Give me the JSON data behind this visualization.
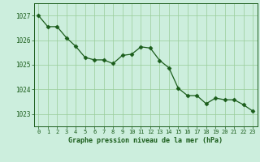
{
  "x": [
    0,
    1,
    2,
    3,
    4,
    5,
    6,
    7,
    8,
    9,
    10,
    11,
    12,
    13,
    14,
    15,
    16,
    17,
    18,
    19,
    20,
    21,
    22,
    23
  ],
  "y": [
    1027.0,
    1026.55,
    1026.55,
    1026.1,
    1025.75,
    1025.3,
    1025.2,
    1025.2,
    1025.05,
    1025.38,
    1025.43,
    1025.73,
    1025.68,
    1025.18,
    1024.88,
    1024.05,
    1023.75,
    1023.75,
    1023.42,
    1023.65,
    1023.58,
    1023.58,
    1023.38,
    1023.12
  ],
  "line_color": "#1a5c1a",
  "marker_color": "#1a5c1a",
  "bg_color": "#cceedd",
  "grid_color": "#99cc99",
  "title": "Graphe pression niveau de la mer (hPa)",
  "ylim_min": 1022.5,
  "ylim_max": 1027.5,
  "xlim_min": -0.5,
  "xlim_max": 23.5,
  "yticks": [
    1023,
    1024,
    1025,
    1026,
    1027
  ],
  "xtick_labels": [
    "0",
    "1",
    "2",
    "3",
    "4",
    "5",
    "6",
    "7",
    "8",
    "9",
    "10",
    "11",
    "12",
    "13",
    "14",
    "15",
    "16",
    "17",
    "18",
    "19",
    "20",
    "21",
    "22",
    "23"
  ]
}
